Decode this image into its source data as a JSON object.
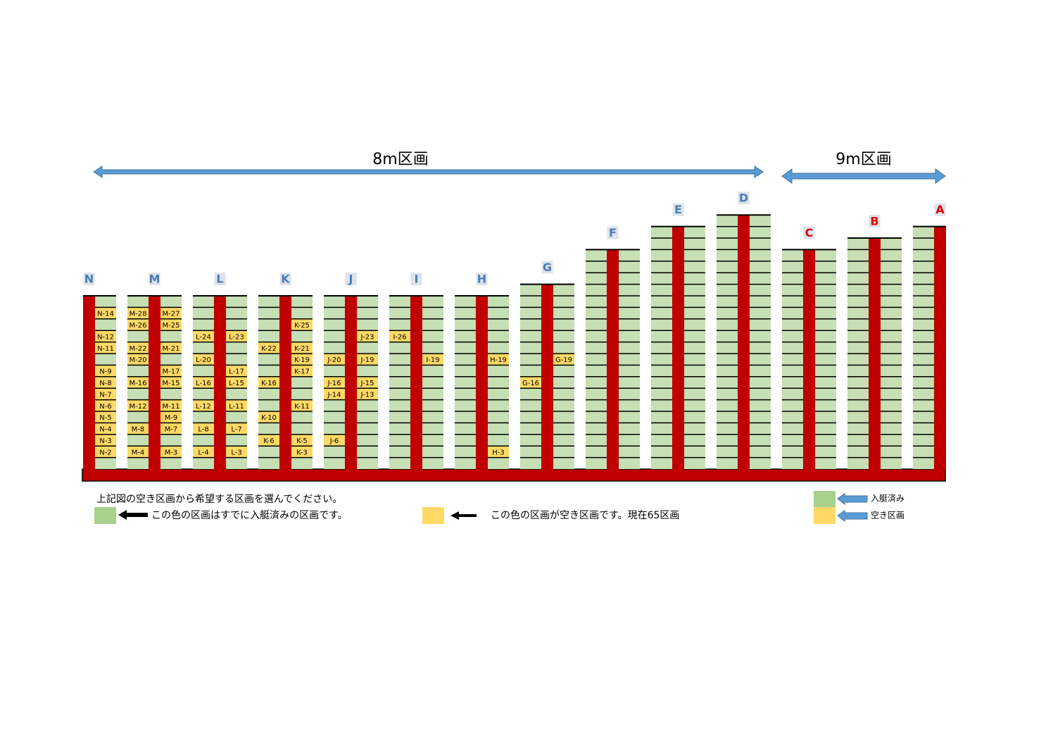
{
  "header": {
    "section_8m": "8m区画",
    "section_9m": "9m区画"
  },
  "piers": [
    {
      "name": "N",
      "color": "#4a7ebb",
      "right": [
        null,
        "N-14",
        null,
        "N-12",
        "N-11",
        null,
        "N-9",
        "N-8",
        "N-7",
        "N-6",
        "N-5",
        "N-4",
        "N-3",
        "N-2",
        null
      ]
    },
    {
      "name": "M",
      "color": "#4a7ebb",
      "left": [
        null,
        "M-28",
        "M-26",
        null,
        "M-22",
        "M-20",
        null,
        "M-16",
        null,
        "M-12",
        null,
        "M-8",
        null,
        "M-4",
        null
      ],
      "right": [
        null,
        "M-27",
        "M-25",
        null,
        "M-21",
        null,
        "M-17",
        "M-15",
        null,
        "M-11",
        "M-9",
        "M-7",
        null,
        "M-3",
        null
      ]
    },
    {
      "name": "L",
      "color": "#4a7ebb",
      "left": [
        null,
        null,
        null,
        "L-24",
        null,
        "L-20",
        null,
        "L-16",
        null,
        "L-12",
        null,
        "L-8",
        null,
        "L-4",
        null
      ],
      "right": [
        null,
        null,
        null,
        "L-23",
        null,
        null,
        "L-17",
        "L-15",
        null,
        "L-11",
        null,
        "L-7",
        null,
        "L-3",
        null
      ]
    },
    {
      "name": "K",
      "color": "#4a7ebb",
      "left": [
        null,
        null,
        null,
        null,
        "K-22",
        null,
        null,
        "K-16",
        null,
        null,
        "K-10",
        null,
        "K-6",
        null,
        null
      ],
      "right": [
        null,
        null,
        "K-25",
        null,
        "K-21",
        "K-19",
        "K-17",
        null,
        null,
        "K-11",
        null,
        null,
        "K-5",
        "K-3",
        null
      ]
    },
    {
      "name": "J",
      "color": "#4a7ebb",
      "left": [
        null,
        null,
        null,
        null,
        null,
        "J-20",
        null,
        "J-16",
        "J-14",
        null,
        null,
        null,
        "J-6",
        null,
        null
      ],
      "right": [
        null,
        null,
        null,
        "J-23",
        null,
        "J-19",
        null,
        "J-15",
        "J-13",
        null,
        null,
        null,
        null,
        null,
        null
      ]
    },
    {
      "name": "I",
      "color": "#4a7ebb",
      "left": [
        null,
        null,
        null,
        "I-26",
        null,
        null,
        null,
        null,
        null,
        null,
        null,
        null,
        null,
        null,
        null
      ],
      "right": [
        null,
        null,
        null,
        null,
        null,
        "I-19",
        null,
        null,
        null,
        null,
        null,
        null,
        null,
        null,
        null
      ]
    },
    {
      "name": "H",
      "color": "#4a7ebb",
      "left": [
        null,
        null,
        null,
        null,
        null,
        null,
        null,
        null,
        null,
        null,
        null,
        null,
        null,
        null,
        null
      ],
      "right": [
        null,
        null,
        null,
        null,
        null,
        "H-19",
        null,
        null,
        null,
        null,
        null,
        null,
        null,
        "H-3",
        null
      ]
    },
    {
      "name": "G",
      "color": "#4a7ebb",
      "left": [
        null,
        null,
        null,
        null,
        null,
        null,
        null,
        null,
        "G-16",
        null,
        null,
        null,
        null,
        null,
        null,
        null
      ],
      "right": [
        null,
        null,
        null,
        null,
        null,
        null,
        "G-19",
        null,
        null,
        null,
        null,
        null,
        null,
        null,
        null,
        null
      ]
    },
    {
      "name": "F",
      "color": "#4a7ebb",
      "left": [
        null,
        null,
        null,
        null,
        null,
        null,
        null,
        null,
        null,
        null,
        null,
        null,
        null,
        null,
        null,
        null,
        null,
        null,
        null
      ],
      "right": [
        null,
        null,
        null,
        null,
        null,
        null,
        null,
        null,
        null,
        null,
        null,
        null,
        null,
        null,
        null,
        null,
        null,
        null,
        null
      ]
    },
    {
      "name": "E",
      "color": "#4a7ebb",
      "left": [
        null,
        null,
        null,
        null,
        null,
        null,
        null,
        null,
        null,
        null,
        null,
        null,
        null,
        null,
        null,
        null,
        null,
        null,
        null,
        null,
        null
      ],
      "right": [
        null,
        null,
        null,
        null,
        null,
        null,
        null,
        null,
        null,
        null,
        null,
        null,
        null,
        null,
        null,
        null,
        null,
        null,
        null,
        null,
        null
      ]
    },
    {
      "name": "D",
      "color": "#4a7ebb",
      "left": [
        null,
        null,
        null,
        null,
        null,
        null,
        null,
        null,
        null,
        null,
        null,
        null,
        null,
        null,
        null,
        null,
        null,
        null,
        null,
        null,
        null,
        null
      ],
      "right": [
        null,
        null,
        null,
        null,
        null,
        null,
        null,
        null,
        null,
        null,
        null,
        null,
        null,
        null,
        null,
        null,
        null,
        null,
        null,
        null,
        null,
        null
      ]
    },
    {
      "name": "C",
      "color": "#e00000",
      "left": [
        null,
        null,
        null,
        null,
        null,
        null,
        null,
        null,
        null,
        null,
        null,
        null,
        null,
        null,
        null,
        null,
        null,
        null,
        null
      ],
      "right": [
        null,
        null,
        null,
        null,
        null,
        null,
        null,
        null,
        null,
        null,
        null,
        null,
        null,
        null,
        null,
        null,
        null,
        null,
        null
      ]
    },
    {
      "name": "B",
      "color": "#e00000",
      "left": [
        null,
        null,
        null,
        null,
        null,
        null,
        null,
        null,
        null,
        null,
        null,
        null,
        null,
        null,
        null,
        null,
        null,
        null,
        null,
        null
      ],
      "right": [
        null,
        null,
        null,
        null,
        null,
        null,
        null,
        null,
        null,
        null,
        null,
        null,
        null,
        null,
        null,
        null,
        null,
        null,
        null,
        null
      ]
    },
    {
      "name": "A",
      "color": "#e00000",
      "left": [
        null,
        null,
        null,
        null,
        null,
        null,
        null,
        null,
        null,
        null,
        null,
        null,
        null,
        null,
        null,
        null,
        null,
        null,
        null,
        null,
        null
      ]
    }
  ],
  "legend": {
    "instruction": "上記図の空き区画から希望する区画を選んでください。",
    "occupied_note": "この色の区画はすでに入艇済みの区画です。",
    "free_note": "この色の区画が空き区画です。現在65区画",
    "occupied": "入艇済み",
    "free": "空き区画"
  }
}
